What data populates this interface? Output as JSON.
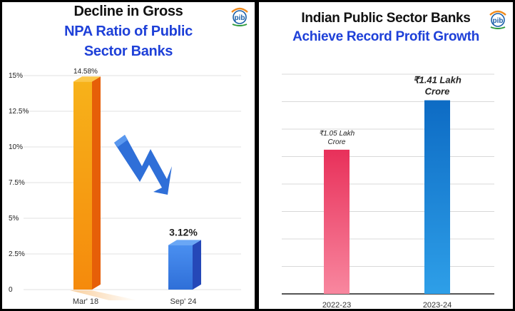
{
  "left": {
    "title_line1": "Decline in Gross",
    "title_line2": "NPA Ratio of Public",
    "title_line3": "Sector Banks",
    "logo_icon": "pib-logo-icon",
    "logo_text": "PIB RESEARCH UNIT",
    "arrow_icon": "down-arrow-icon",
    "colors": {
      "bar1": "#f58a0c",
      "bar2": "#2f6fd8",
      "title_blue": "#1e40d8"
    }
  },
  "right": {
    "title_line1": "Indian Public Sector Banks",
    "title_line2": "Achieve Record Profit Growth",
    "logo_icon": "pib-logo-icon",
    "logo_text": "PIB RESEARCH UNIT",
    "colors": {
      "bar1": "#e8305a",
      "bar2": "#0d6bc4",
      "title_blue": "#1e40d8"
    }
  },
  "chart_data": [
    {
      "type": "bar",
      "title": "Decline in Gross NPA Ratio of Public Sector Banks",
      "categories": [
        "Mar' 18",
        "Sep' 24"
      ],
      "values": [
        14.58,
        3.12
      ],
      "data_labels": [
        "14.58%",
        "3.12%"
      ],
      "y_ticks": [
        "0",
        "2.5%",
        "5%",
        "7.5%",
        "10%",
        "12.5%",
        "15%"
      ],
      "ylim": [
        0,
        15
      ],
      "grid": true
    },
    {
      "type": "bar",
      "title": "Indian Public Sector Banks Achieve Record Profit Growth",
      "categories": [
        "2022-23",
        "2023-24"
      ],
      "values": [
        1.05,
        1.41
      ],
      "data_labels": [
        [
          "₹1.05 Lakh",
          "Crore"
        ],
        [
          "₹1.41 Lakh",
          "Crore"
        ]
      ],
      "ylim": [
        0,
        1.6
      ],
      "grid": true
    }
  ]
}
